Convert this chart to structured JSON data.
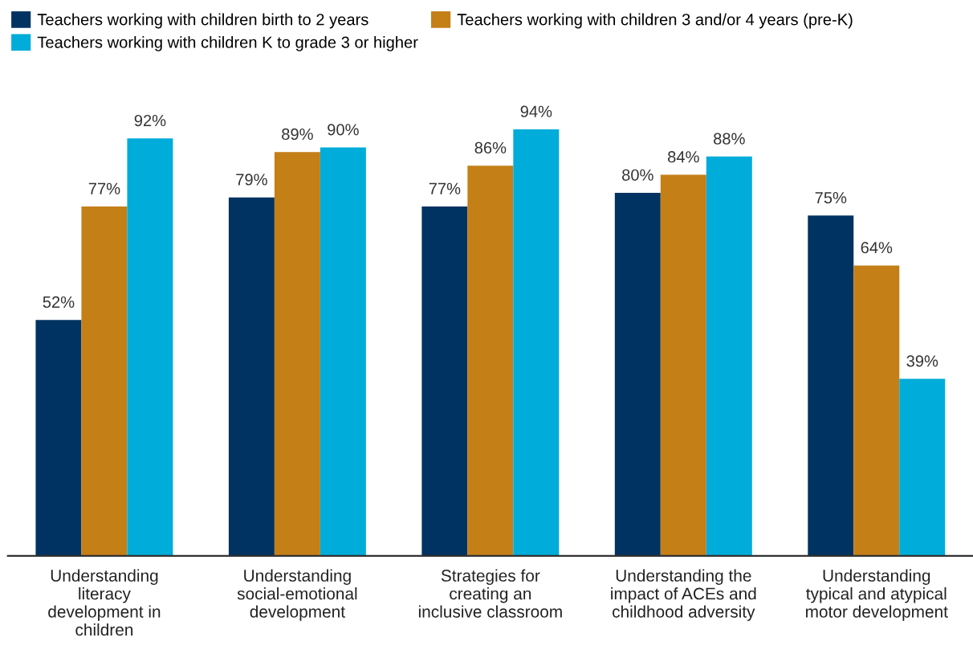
{
  "chart_data": {
    "type": "bar",
    "categories": [
      "Understanding\nliteracy\ndevelopment in\nchildren",
      "Understanding\nsocial-emotional\ndevelopment",
      "Strategies for\ncreating an\ninclusive classroom",
      "Understanding the\nimpact of ACEs and\nchildhood adversity",
      "Understanding\ntypical and atypical\nmotor development"
    ],
    "series": [
      {
        "name": "Teachers working with children birth to 2 years",
        "color": "#003361",
        "values": [
          52,
          79,
          77,
          80,
          75
        ],
        "value_labels": [
          "52%",
          "79%",
          "77%",
          "80%",
          "75%"
        ]
      },
      {
        "name": "Teachers working with children 3 and/or 4 years (pre-K)",
        "color": "#c47f17",
        "values": [
          77,
          89,
          86,
          84,
          64
        ],
        "value_labels": [
          "77%",
          "89%",
          "86%",
          "84%",
          "64%"
        ]
      },
      {
        "name": "Teachers working with children K to grade 3 or higher",
        "color": "#00acd9",
        "values": [
          92,
          90,
          94,
          88,
          39
        ],
        "value_labels": [
          "92%",
          "90%",
          "94%",
          "88%",
          "39%"
        ]
      }
    ],
    "legend": "top left",
    "grid": false
  }
}
